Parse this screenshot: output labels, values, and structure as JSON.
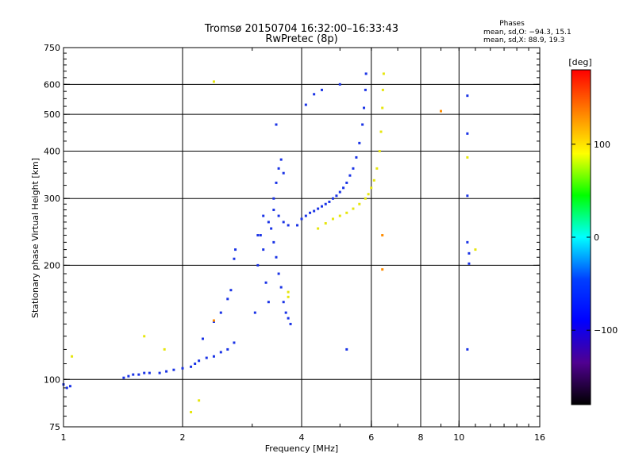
{
  "chart_data": {
    "type": "scatter",
    "title": "Tromsø 20150704 16:32:00–16:33:43",
    "subtitle": "RwPretec (8p)",
    "xlabel": "Frequency [MHz]",
    "ylabel": "Stationary phase Virtual Height [km]",
    "xscale": "log",
    "yscale": "log",
    "xlim": [
      1,
      16
    ],
    "ylim": [
      75,
      750
    ],
    "xticks": [
      1,
      2,
      4,
      6,
      8,
      10,
      16
    ],
    "xtick_labels": [
      "1",
      "2",
      "4",
      "6",
      "8",
      "10",
      "16"
    ],
    "xgrid": [
      2,
      4,
      6,
      8,
      10
    ],
    "yticks": [
      75,
      100,
      200,
      300,
      400,
      500,
      600,
      750
    ],
    "ytick_labels": [
      "75",
      "100",
      "200",
      "300",
      "400",
      "500",
      "600",
      "750"
    ],
    "ygrid": [
      100,
      200,
      300,
      400,
      500,
      600
    ],
    "grid": true,
    "stats": {
      "heading": "Phases",
      "line_o": "mean, sd,O: −94.3, 15.1",
      "line_x": "mean, sd,X:  88.9, 19.3"
    },
    "colorbar": {
      "label": "[deg]",
      "range": [
        -180,
        180
      ],
      "ticks": [
        100,
        0,
        -100
      ],
      "tick_labels": [
        "100",
        "0",
        "−100"
      ],
      "colors": [
        "#ff0000",
        "#ff8000",
        "#ffff00",
        "#00ff00",
        "#00ffff",
        "#0040ff",
        "#0000ff",
        "#500090",
        "#000000"
      ],
      "position": "right"
    },
    "series": [
      {
        "mode": "O",
        "phase": -94,
        "color": "#1a33e6",
        "points": [
          [
            1.0,
            97
          ],
          [
            1.02,
            95
          ],
          [
            1.04,
            96
          ],
          [
            1.42,
            101
          ],
          [
            1.46,
            102
          ],
          [
            1.5,
            103
          ],
          [
            1.55,
            103
          ],
          [
            1.6,
            104
          ],
          [
            1.65,
            104
          ],
          [
            1.75,
            104
          ],
          [
            1.82,
            105
          ],
          [
            1.9,
            106
          ],
          [
            2.0,
            107
          ],
          [
            2.1,
            108
          ],
          [
            2.15,
            110
          ],
          [
            2.2,
            112
          ],
          [
            2.3,
            114
          ],
          [
            2.4,
            115
          ],
          [
            2.5,
            118
          ],
          [
            2.6,
            120
          ],
          [
            2.7,
            125
          ],
          [
            2.25,
            128
          ],
          [
            2.4,
            142
          ],
          [
            2.5,
            150
          ],
          [
            2.6,
            163
          ],
          [
            2.65,
            172
          ],
          [
            2.7,
            208
          ],
          [
            2.72,
            220
          ],
          [
            3.05,
            150
          ],
          [
            3.1,
            200
          ],
          [
            3.15,
            240
          ],
          [
            3.2,
            270
          ],
          [
            3.25,
            180
          ],
          [
            3.3,
            160
          ],
          [
            3.35,
            250
          ],
          [
            3.4,
            230
          ],
          [
            3.45,
            210
          ],
          [
            3.5,
            190
          ],
          [
            3.55,
            175
          ],
          [
            3.6,
            160
          ],
          [
            3.65,
            150
          ],
          [
            3.7,
            145
          ],
          [
            3.75,
            140
          ],
          [
            3.1,
            240
          ],
          [
            3.2,
            220
          ],
          [
            3.3,
            260
          ],
          [
            3.4,
            280
          ],
          [
            3.5,
            270
          ],
          [
            3.6,
            260
          ],
          [
            3.7,
            255
          ],
          [
            3.45,
            330
          ],
          [
            3.5,
            360
          ],
          [
            3.55,
            380
          ],
          [
            3.6,
            350
          ],
          [
            3.45,
            470
          ],
          [
            3.4,
            300
          ],
          [
            3.9,
            255
          ],
          [
            4.0,
            265
          ],
          [
            4.1,
            270
          ],
          [
            4.2,
            275
          ],
          [
            4.3,
            278
          ],
          [
            4.4,
            282
          ],
          [
            4.5,
            286
          ],
          [
            4.6,
            290
          ],
          [
            4.7,
            294
          ],
          [
            4.8,
            300
          ],
          [
            4.9,
            305
          ],
          [
            5.0,
            312
          ],
          [
            5.1,
            320
          ],
          [
            5.2,
            330
          ],
          [
            5.3,
            345
          ],
          [
            5.4,
            360
          ],
          [
            5.5,
            385
          ],
          [
            5.6,
            420
          ],
          [
            5.7,
            470
          ],
          [
            5.75,
            520
          ],
          [
            5.8,
            580
          ],
          [
            5.82,
            640
          ],
          [
            4.1,
            530
          ],
          [
            4.3,
            565
          ],
          [
            4.5,
            580
          ],
          [
            5.0,
            600
          ],
          [
            5.2,
            120
          ],
          [
            10.5,
            560
          ],
          [
            10.5,
            445
          ],
          [
            10.5,
            305
          ],
          [
            10.5,
            230
          ],
          [
            10.6,
            215
          ],
          [
            10.6,
            202
          ],
          [
            10.5,
            120
          ]
        ]
      },
      {
        "mode": "X",
        "phase": 89,
        "color": "#e6e60d",
        "points": [
          [
            4.4,
            250
          ],
          [
            4.6,
            258
          ],
          [
            4.8,
            265
          ],
          [
            5.0,
            270
          ],
          [
            5.2,
            275
          ],
          [
            5.4,
            282
          ],
          [
            5.6,
            290
          ],
          [
            5.8,
            300
          ],
          [
            5.9,
            308
          ],
          [
            6.0,
            320
          ],
          [
            6.1,
            335
          ],
          [
            6.2,
            360
          ],
          [
            6.3,
            400
          ],
          [
            6.35,
            450
          ],
          [
            6.4,
            520
          ],
          [
            6.42,
            580
          ],
          [
            6.45,
            640
          ],
          [
            3.7,
            165
          ],
          [
            3.7,
            170
          ],
          [
            2.4,
            610
          ],
          [
            1.6,
            130
          ],
          [
            1.05,
            115
          ],
          [
            1.8,
            120
          ],
          [
            2.2,
            88
          ],
          [
            2.1,
            82
          ],
          [
            10.5,
            385
          ],
          [
            11.0,
            220
          ]
        ]
      },
      {
        "mode": "other",
        "phase": 140,
        "color": "#ff8c00",
        "points": [
          [
            6.4,
            240
          ],
          [
            6.4,
            195
          ],
          [
            9.0,
            510
          ],
          [
            2.4,
            143
          ]
        ]
      }
    ]
  }
}
